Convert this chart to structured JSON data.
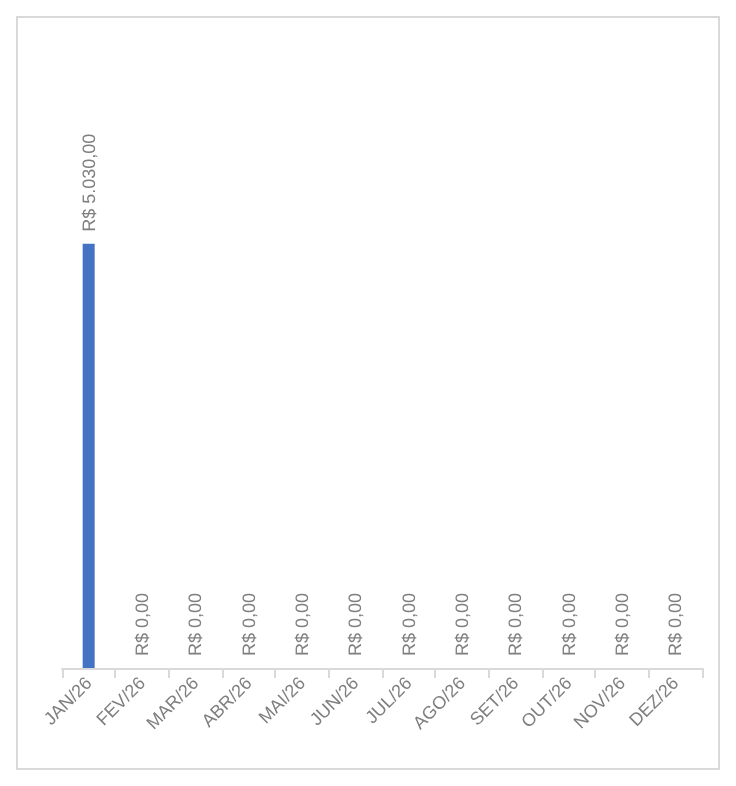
{
  "chart_data": {
    "type": "bar",
    "categories": [
      "JAN/26",
      "FEV/26",
      "MAR/26",
      "ABR/26",
      "MAI/26",
      "JUN/26",
      "JUL/26",
      "AGO/26",
      "SET/26",
      "OUT/26",
      "NOV/26",
      "DEZ/26"
    ],
    "values": [
      5030,
      0,
      0,
      0,
      0,
      0,
      0,
      0,
      0,
      0,
      0,
      0
    ],
    "value_labels": [
      "R$ 5.030,00",
      "R$ 0,00",
      "R$ 0,00",
      "R$ 0,00",
      "R$ 0,00",
      "R$ 0,00",
      "R$ 0,00",
      "R$ 0,00",
      "R$ 0,00",
      "R$ 0,00",
      "R$ 0,00",
      "R$ 0,00"
    ],
    "color": "#4472c4"
  }
}
